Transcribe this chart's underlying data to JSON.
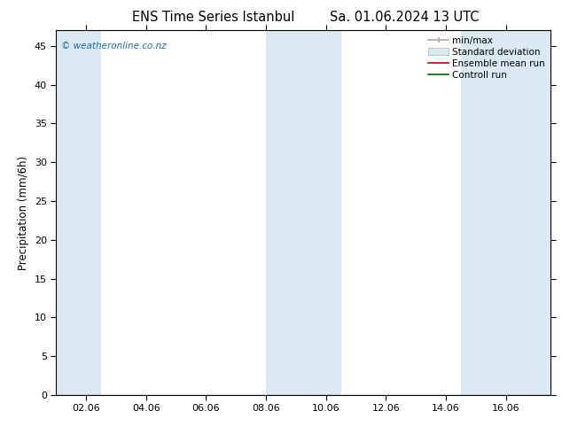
{
  "title_left": "ENS Time Series Istanbul",
  "title_right": "Sa. 01.06.2024 13 UTC",
  "ylabel": "Precipitation (mm/6h)",
  "ylim": [
    0,
    47
  ],
  "yticks": [
    0,
    5,
    10,
    15,
    20,
    25,
    30,
    35,
    40,
    45
  ],
  "xtick_labels": [
    "02.06",
    "04.06",
    "06.06",
    "08.06",
    "10.06",
    "12.06",
    "14.06",
    "16.06"
  ],
  "xtick_positions": [
    1,
    3,
    5,
    7,
    9,
    11,
    13,
    15
  ],
  "xlim": [
    0,
    16.5
  ],
  "shaded_bands": [
    {
      "xmin": 0,
      "xmax": 1.5
    },
    {
      "xmin": 7.0,
      "xmax": 9.5
    },
    {
      "xmin": 13.5,
      "xmax": 16.5
    }
  ],
  "band_color": "#daeaf5",
  "background_color": "#ffffff",
  "plot_bg_color": "#ffffff",
  "legend_items": [
    {
      "label": "min/max",
      "color": "#aaaaaa",
      "type": "errorbar"
    },
    {
      "label": "Standard deviation",
      "color": "#c8d8e8",
      "type": "box"
    },
    {
      "label": "Ensemble mean run",
      "color": "#cc0000",
      "type": "line"
    },
    {
      "label": "Controll run",
      "color": "#006600",
      "type": "line"
    }
  ],
  "watermark": "© weatheronline.co.nz",
  "watermark_color": "#1e6eb5",
  "title_fontsize": 10.5,
  "axis_fontsize": 8.5,
  "tick_fontsize": 8,
  "legend_fontsize": 7.5
}
